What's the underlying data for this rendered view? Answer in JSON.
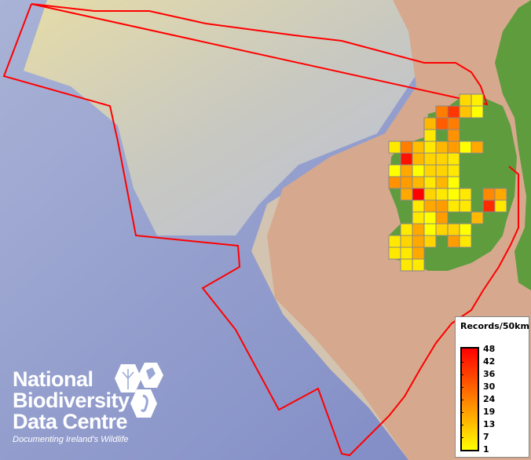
{
  "legend": {
    "title": "Records/50km",
    "ticks": [
      "48",
      "42",
      "36",
      "30",
      "24",
      "19",
      "13",
      "7",
      "1"
    ],
    "colors": {
      "max": "#ff0000",
      "mid": "#ff8000",
      "min": "#ffff00"
    },
    "range": [
      1,
      48
    ]
  },
  "logo": {
    "line1": "National",
    "line2": "Biodiversity",
    "line3": "Data Centre",
    "tagline": "Documenting Ireland's Wildlife"
  },
  "colors": {
    "boundary": "#ff0000",
    "land": "#5a9a3c",
    "ocean": "#8a97c8",
    "shelf": "#d9b090",
    "grid_stroke": "#888888"
  },
  "grid_cells": [
    [
      0,
      6,
      8
    ],
    [
      0,
      7,
      4
    ],
    [
      1,
      4,
      25
    ],
    [
      1,
      5,
      38
    ],
    [
      1,
      6,
      12
    ],
    [
      1,
      7,
      1
    ],
    [
      2,
      3,
      14
    ],
    [
      2,
      4,
      31
    ],
    [
      2,
      5,
      25
    ],
    [
      3,
      3,
      5
    ],
    [
      3,
      5,
      21
    ],
    [
      4,
      0,
      5
    ],
    [
      4,
      1,
      25
    ],
    [
      4,
      2,
      13
    ],
    [
      4,
      3,
      5
    ],
    [
      4,
      4,
      14
    ],
    [
      4,
      5,
      19
    ],
    [
      4,
      6,
      1
    ],
    [
      4,
      7,
      17
    ],
    [
      5,
      1,
      45
    ],
    [
      5,
      2,
      14
    ],
    [
      5,
      3,
      9
    ],
    [
      5,
      4,
      9
    ],
    [
      5,
      5,
      5
    ],
    [
      6,
      0,
      1
    ],
    [
      6,
      1,
      17
    ],
    [
      6,
      2,
      1
    ],
    [
      6,
      3,
      9
    ],
    [
      6,
      4,
      9
    ],
    [
      6,
      5,
      5
    ],
    [
      7,
      0,
      21
    ],
    [
      7,
      1,
      19
    ],
    [
      7,
      2,
      14
    ],
    [
      7,
      3,
      5
    ],
    [
      7,
      4,
      14
    ],
    [
      7,
      5,
      1
    ],
    [
      8,
      1,
      17
    ],
    [
      8,
      2,
      48
    ],
    [
      8,
      3,
      9
    ],
    [
      8,
      4,
      5
    ],
    [
      8,
      5,
      1
    ],
    [
      8,
      6,
      5
    ],
    [
      8,
      8,
      23
    ],
    [
      8,
      9,
      17
    ],
    [
      9,
      2,
      5
    ],
    [
      9,
      3,
      17
    ],
    [
      9,
      4,
      19
    ],
    [
      9,
      5,
      5
    ],
    [
      9,
      6,
      5
    ],
    [
      9,
      8,
      40
    ],
    [
      9,
      9,
      5
    ],
    [
      10,
      2,
      5
    ],
    [
      10,
      3,
      1
    ],
    [
      10,
      4,
      19
    ],
    [
      10,
      7,
      14
    ],
    [
      11,
      1,
      5
    ],
    [
      11,
      2,
      17
    ],
    [
      11,
      3,
      1
    ],
    [
      11,
      4,
      9
    ],
    [
      11,
      5,
      9
    ],
    [
      11,
      6,
      1
    ],
    [
      12,
      0,
      5
    ],
    [
      12,
      1,
      9
    ],
    [
      12,
      2,
      17
    ],
    [
      12,
      3,
      9
    ],
    [
      12,
      5,
      19
    ],
    [
      12,
      6,
      5
    ],
    [
      13,
      0,
      5
    ],
    [
      13,
      1,
      5
    ],
    [
      13,
      2,
      17
    ],
    [
      14,
      1,
      5
    ],
    [
      14,
      2,
      5
    ]
  ]
}
